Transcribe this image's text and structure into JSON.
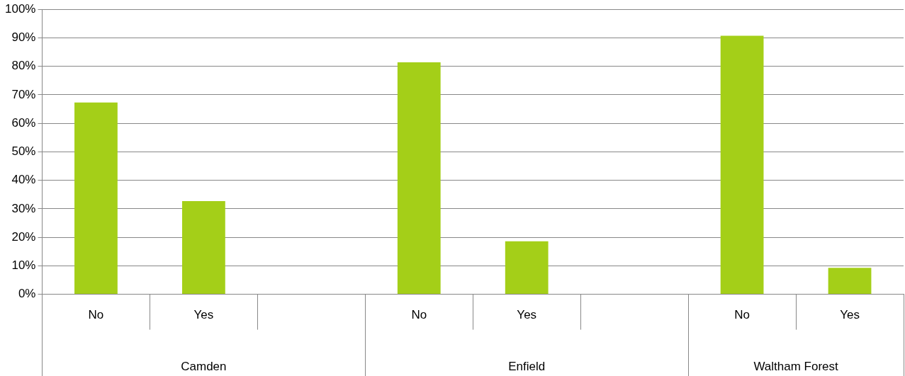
{
  "chart_data": {
    "type": "bar",
    "categories": [
      "No",
      "Yes",
      null,
      "No",
      "Yes",
      null,
      "No",
      "Yes"
    ],
    "values": [
      67.3,
      32.7,
      null,
      81.4,
      18.6,
      null,
      90.7,
      9.3
    ],
    "color": "#a4cf18",
    "ylim": [
      0,
      100
    ],
    "yticks": [
      {
        "value": 0,
        "label": "0%"
      },
      {
        "value": 10,
        "label": "10%"
      },
      {
        "value": 20,
        "label": "20%"
      },
      {
        "value": 30,
        "label": "30%"
      },
      {
        "value": 40,
        "label": "40%"
      },
      {
        "value": 50,
        "label": "50%"
      },
      {
        "value": 60,
        "label": "60%"
      },
      {
        "value": 70,
        "label": "70%"
      },
      {
        "value": 80,
        "label": "80%"
      },
      {
        "value": 90,
        "label": "90%"
      },
      {
        "value": 100,
        "label": "100%"
      }
    ],
    "grid": "y",
    "legend": false,
    "annotations": [
      "Camden",
      "Enfield",
      "Waltham Forest"
    ]
  }
}
